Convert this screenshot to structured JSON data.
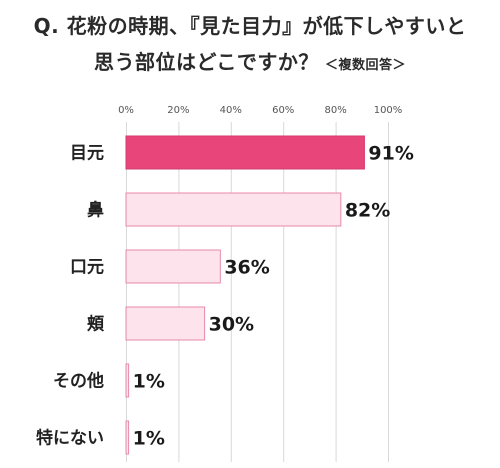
{
  "title_line1": "Q. 花粉の時期、『見た目力』が低下しやすいと",
  "title_line2": "思う部位はどこですか？",
  "title_note": "＜複数回答＞",
  "colors": {
    "highlight_fill": "#e8457a",
    "highlight_stroke": "#d63b6c",
    "bar_fill": "#fce3ec",
    "bar_stroke": "#e88aaa",
    "grid": "#d9d9d9"
  },
  "chart_data": {
    "type": "bar",
    "orientation": "horizontal",
    "categories": [
      "目元",
      "鼻",
      "口元",
      "頬",
      "その他",
      "特にない"
    ],
    "values": [
      91,
      82,
      36,
      30,
      1,
      1
    ],
    "value_labels": [
      "91%",
      "82%",
      "36%",
      "30%",
      "1%",
      "1%"
    ],
    "highlight_index": 0,
    "xlim": [
      0,
      100
    ],
    "ticks": [
      0,
      20,
      40,
      60,
      80,
      100
    ],
    "tick_labels": [
      "0%",
      "20%",
      "40%",
      "60%",
      "80%",
      "100%"
    ],
    "grid": true
  }
}
